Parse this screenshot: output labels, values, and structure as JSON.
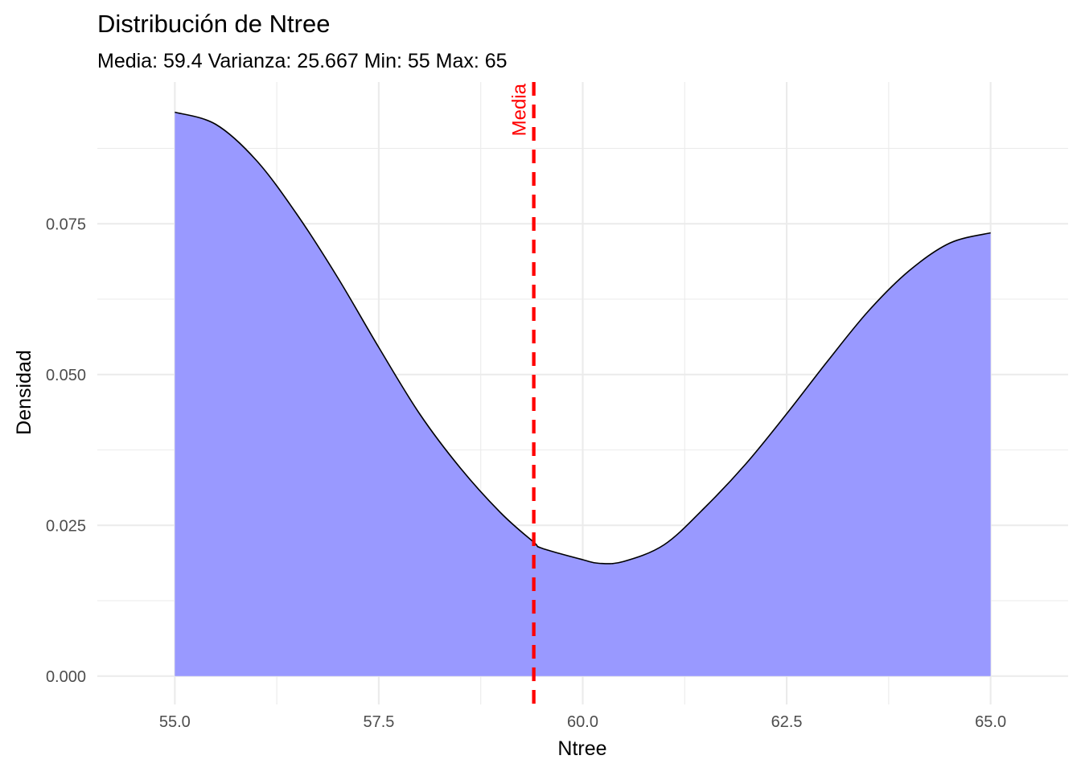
{
  "chart_data": {
    "type": "area",
    "title": "Distribución de Ntree",
    "subtitle": "Media: 59.4 Varianza: 25.667 Min: 55 Max: 65",
    "xlabel": "Ntree",
    "ylabel": "Densidad",
    "xlim": [
      54.05,
      65.95
    ],
    "ylim": [
      -0.0047,
      0.0985
    ],
    "x_ticks": [
      55.0,
      57.5,
      60.0,
      62.5,
      65.0
    ],
    "x_tick_labels": [
      "55.0",
      "57.5",
      "60.0",
      "62.5",
      "65.0"
    ],
    "y_ticks": [
      0.0,
      0.025,
      0.05,
      0.075
    ],
    "y_tick_labels": [
      "0.000",
      "0.025",
      "0.050",
      "0.075"
    ],
    "grid": true,
    "series": [
      {
        "fill_color": "#9999ff",
        "line_color": "#000000",
        "x": [
          55.0,
          55.5,
          56.0,
          56.5,
          57.0,
          57.5,
          58.0,
          58.5,
          59.0,
          59.4,
          59.5,
          60.0,
          60.2,
          60.5,
          61.0,
          61.5,
          62.0,
          62.5,
          63.0,
          63.5,
          64.0,
          64.5,
          65.0
        ],
        "y": [
          0.0935,
          0.0915,
          0.0855,
          0.0765,
          0.066,
          0.0545,
          0.0435,
          0.0345,
          0.027,
          0.0222,
          0.0212,
          0.0193,
          0.0187,
          0.019,
          0.0218,
          0.028,
          0.0352,
          0.0435,
          0.0522,
          0.0605,
          0.0672,
          0.0718,
          0.0735
        ]
      }
    ],
    "annotations": [
      {
        "type": "vline",
        "x": 59.4,
        "label": "Media",
        "color": "#ff0000",
        "linestyle": "dashed"
      }
    ]
  }
}
